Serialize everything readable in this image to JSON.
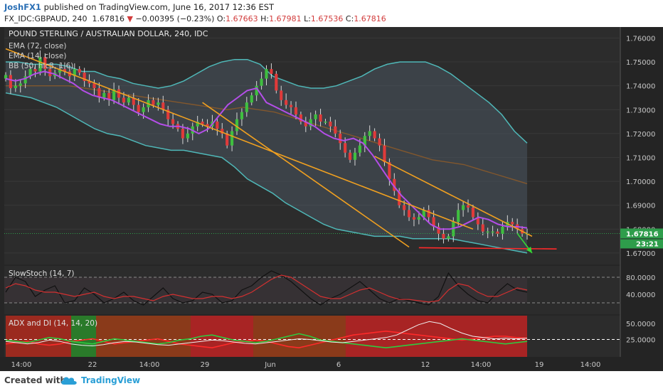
{
  "header": {
    "publisher": "JoshFX1",
    "published_text": " published on TradingView.com, June 16, 2017 12:36 EST",
    "symbol": "FX_IDC:GBPAUD, 240",
    "last": "1.67816",
    "change_arrow": "▼",
    "change": "−0.00395 (−0.23%)",
    "o_label": "O:",
    "o_value": "1.67663",
    "h_label": "H:",
    "h_value": "1.67981",
    "l_label": "L:",
    "l_value": "1.67536",
    "c_label": "C:",
    "c_value": "1.67816"
  },
  "footer": {
    "created_with": "Created with",
    "brand": "TradingView"
  },
  "chart_data": {
    "type": "line",
    "title": "POUND STERLING / AUSTRALIAN DOLLAR, 240, IDC",
    "legend": [
      "EMA (72, close)",
      "EMA (14, close)",
      "BB (50, hlc3, 1.6)"
    ],
    "price_axis": {
      "ticks": [
        "1.76000",
        "1.75000",
        "1.74000",
        "1.73000",
        "1.72000",
        "1.71000",
        "1.70000",
        "1.69000",
        "1.68000",
        "1.67000"
      ],
      "range": [
        1.6652,
        1.7646
      ]
    },
    "last_price_label": "1.67816",
    "countdown_label": "23:21",
    "time_axis": [
      "14:00",
      "22",
      "14:00",
      "29",
      "Jun",
      "6",
      "12",
      "14:00",
      "19",
      "14:00"
    ],
    "close": [
      1.7445,
      1.739,
      1.74,
      1.741,
      1.744,
      1.747,
      1.746,
      1.752,
      1.747,
      1.744,
      1.7455,
      1.747,
      1.746,
      1.744,
      1.747,
      1.7455,
      1.742,
      1.741,
      1.739,
      1.735,
      1.737,
      1.734,
      1.7385,
      1.735,
      1.733,
      1.735,
      1.732,
      1.729,
      1.731,
      1.734,
      1.732,
      1.733,
      1.73,
      1.726,
      1.724,
      1.722,
      1.718,
      1.72,
      1.723,
      1.725,
      1.724,
      1.723,
      1.725,
      1.722,
      1.72,
      1.715,
      1.721,
      1.726,
      1.729,
      1.733,
      1.736,
      1.74,
      1.743,
      1.747,
      1.745,
      1.738,
      1.734,
      1.732,
      1.731,
      1.728,
      1.725,
      1.723,
      1.726,
      1.728,
      1.725,
      1.725,
      1.723,
      1.72,
      1.716,
      1.712,
      1.709,
      1.712,
      1.715,
      1.719,
      1.721,
      1.718,
      1.715,
      1.708,
      1.701,
      1.696,
      1.69,
      1.688,
      1.685,
      1.684,
      1.685,
      1.688,
      1.685,
      1.681,
      1.678,
      1.676,
      1.677,
      1.683,
      1.688,
      1.69,
      1.689,
      1.685,
      1.682,
      1.679,
      1.679,
      1.679,
      1.678,
      1.681,
      1.683,
      1.682,
      1.68,
      1.678,
      1.6782
    ],
    "bb_upper": [
      1.75,
      1.75,
      1.749,
      1.749,
      1.749,
      1.748,
      1.746,
      1.746,
      1.744,
      1.743,
      1.741,
      1.74,
      1.739,
      1.74,
      1.742,
      1.745,
      1.748,
      1.75,
      1.751,
      1.751,
      1.749,
      1.744,
      1.742,
      1.74,
      1.739,
      1.739,
      1.74,
      1.742,
      1.744,
      1.747,
      1.749,
      1.75,
      1.75,
      1.75,
      1.748,
      1.745,
      1.741,
      1.737,
      1.733,
      1.728,
      1.721,
      1.716
    ],
    "bb_lower": [
      1.737,
      1.736,
      1.735,
      1.733,
      1.731,
      1.728,
      1.725,
      1.722,
      1.72,
      1.719,
      1.717,
      1.715,
      1.714,
      1.713,
      1.713,
      1.712,
      1.711,
      1.71,
      1.706,
      1.701,
      1.698,
      1.695,
      1.691,
      1.688,
      1.685,
      1.682,
      1.68,
      1.679,
      1.678,
      1.677,
      1.677,
      1.677,
      1.676,
      1.676,
      1.676,
      1.676,
      1.675,
      1.674,
      1.673,
      1.672,
      1.671,
      1.67
    ],
    "ema72": [
      1.74,
      1.74,
      1.74,
      1.74,
      1.74,
      1.739,
      1.738,
      1.737,
      1.736,
      1.735,
      1.734,
      1.733,
      1.732,
      1.731,
      1.73,
      1.731,
      1.73,
      1.729,
      1.727,
      1.725,
      1.723,
      1.721,
      1.719,
      1.717,
      1.715,
      1.713,
      1.711,
      1.709,
      1.708,
      1.707,
      1.705,
      1.703,
      1.701,
      1.699
    ],
    "ema14": [
      1.743,
      1.742,
      1.743,
      1.745,
      1.746,
      1.745,
      1.743,
      1.741,
      1.738,
      1.736,
      1.735,
      1.734,
      1.732,
      1.73,
      1.728,
      1.726,
      1.724,
      1.723,
      1.723,
      1.722,
      1.72,
      1.722,
      1.727,
      1.732,
      1.735,
      1.738,
      1.739,
      1.733,
      1.731,
      1.729,
      1.727,
      1.725,
      1.723,
      1.72,
      1.718,
      1.717,
      1.718,
      1.716,
      1.711,
      1.705,
      1.699,
      1.694,
      1.69,
      1.686,
      1.682,
      1.68,
      1.68,
      1.681,
      1.683,
      1.685,
      1.684,
      1.682,
      1.681,
      1.681,
      1.6805
    ],
    "annotations": {
      "channel_upper": [
        [
          0,
          1.7555
        ],
        [
          95,
          1.68
        ]
      ],
      "channel_lower": [
        [
          40,
          1.733
        ],
        [
          82,
          1.6725
        ]
      ],
      "channel_second": [
        [
          75,
          1.7105
        ],
        [
          107,
          1.677
        ]
      ],
      "support": [
        [
          84,
          1.6722
        ],
        [
          112,
          1.6717
        ]
      ],
      "forecast_arrow": [
        [
          104,
          1.6782
        ],
        [
          107,
          1.67
        ]
      ]
    },
    "stoch": {
      "title": "SlowStoch (14, 7)",
      "ticks": [
        "80.0000",
        "40.0000"
      ],
      "k": [
        45,
        80,
        70,
        35,
        50,
        60,
        20,
        25,
        55,
        40,
        20,
        30,
        45,
        25,
        15,
        35,
        55,
        30,
        20,
        25,
        45,
        40,
        20,
        25,
        50,
        60,
        80,
        95,
        85,
        70,
        50,
        30,
        15,
        30,
        40,
        55,
        70,
        50,
        30,
        20,
        30,
        25,
        20,
        15,
        35,
        90,
        60,
        40,
        25,
        20,
        45,
        65,
        50,
        45
      ],
      "d": [
        55,
        65,
        60,
        50,
        45,
        45,
        40,
        35,
        40,
        45,
        35,
        30,
        35,
        35,
        30,
        25,
        35,
        40,
        35,
        30,
        30,
        35,
        35,
        30,
        35,
        45,
        60,
        75,
        85,
        80,
        65,
        50,
        35,
        30,
        30,
        40,
        50,
        55,
        45,
        35,
        28,
        28,
        25,
        22,
        25,
        50,
        65,
        60,
        45,
        35,
        35,
        45,
        55,
        50
      ]
    },
    "adx": {
      "title": "ADX and DI (14, 14, 20)",
      "ticks": [
        "50.0000",
        "25.0000"
      ],
      "adx": [
        22,
        20,
        18,
        20,
        24,
        22,
        18,
        16,
        15,
        17,
        20,
        22,
        21,
        19,
        17,
        16,
        18,
        20,
        22,
        24,
        23,
        21,
        19,
        18,
        20,
        22,
        24,
        26,
        25,
        23,
        21,
        20,
        22,
        24,
        26,
        28,
        32,
        40,
        48,
        53,
        50,
        42,
        35,
        30,
        28,
        26,
        27,
        26,
        27
      ],
      "di_plus": [
        24,
        22,
        20,
        24,
        28,
        26,
        22,
        20,
        18,
        22,
        26,
        24,
        22,
        20,
        18,
        20,
        24,
        26,
        30,
        32,
        28,
        24,
        22,
        20,
        22,
        26,
        30,
        34,
        30,
        24,
        22,
        20,
        18,
        16,
        14,
        12,
        14,
        16,
        18,
        20,
        22,
        24,
        26,
        24,
        22,
        20,
        18,
        20,
        22
      ],
      "di_minus": [
        18,
        20,
        22,
        18,
        16,
        18,
        22,
        24,
        26,
        22,
        18,
        20,
        22,
        24,
        26,
        22,
        18,
        16,
        14,
        12,
        16,
        20,
        22,
        24,
        22,
        18,
        14,
        12,
        16,
        20,
        24,
        28,
        32,
        34,
        36,
        38,
        36,
        34,
        32,
        30,
        28,
        26,
        24,
        26,
        28,
        30,
        30,
        28,
        27
      ]
    },
    "colors": {
      "background": "#2c2c2c",
      "up": "#3fbf3f",
      "down": "#e03a3a",
      "bollinger": "#4fb8b8",
      "ema14": "#b44ee8",
      "ema72": "#8a5a2a",
      "trendline": "#f0a020",
      "support": "#ff2a2a",
      "arrow": "#35d935",
      "last_price": "#2e9d4b"
    }
  }
}
